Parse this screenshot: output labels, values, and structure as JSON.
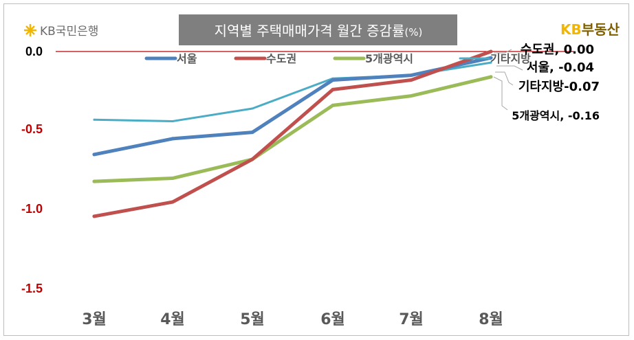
{
  "brand": {
    "left_logo_text": "KB국민은행",
    "right_logo_kb": "KB",
    "right_logo_text": "부동산"
  },
  "colors": {
    "title_bg": "#7f7f7f",
    "title_text": "#ffffff",
    "zero_line": "#c00000",
    "y_tick": "#c00000",
    "kb_yellow": "#f2b600",
    "right_logo_text": "#7f6000"
  },
  "chart_data": {
    "type": "line",
    "title": "지역별 주택매매가격 월간 증감률",
    "title_unit": "(%)",
    "categories": [
      "3월",
      "4월",
      "5월",
      "6월",
      "7월",
      "8월"
    ],
    "y_ticks": [
      "0.0",
      "-0.5",
      "-1.0",
      "-1.5"
    ],
    "ylim": [
      -1.5,
      0.0
    ],
    "series": [
      {
        "name": "서울",
        "color": "#4f81bd",
        "values": [
          -0.65,
          -0.55,
          -0.51,
          -0.18,
          -0.15,
          -0.04
        ]
      },
      {
        "name": "수도권",
        "color": "#c0504d",
        "values": [
          -1.04,
          -0.95,
          -0.68,
          -0.24,
          -0.18,
          0.0
        ]
      },
      {
        "name": "5개광역시",
        "color": "#9bbb59",
        "values": [
          -0.82,
          -0.8,
          -0.68,
          -0.34,
          -0.28,
          -0.16
        ]
      },
      {
        "name": "기타지방",
        "color": "#4bacc6",
        "values": [
          -0.43,
          -0.44,
          -0.36,
          -0.17,
          -0.15,
          -0.07
        ]
      }
    ],
    "end_labels": [
      "수도권, 0.00",
      "서울, -0.04",
      "기타지방-0.07",
      "5개광역시, -0.16"
    ]
  }
}
